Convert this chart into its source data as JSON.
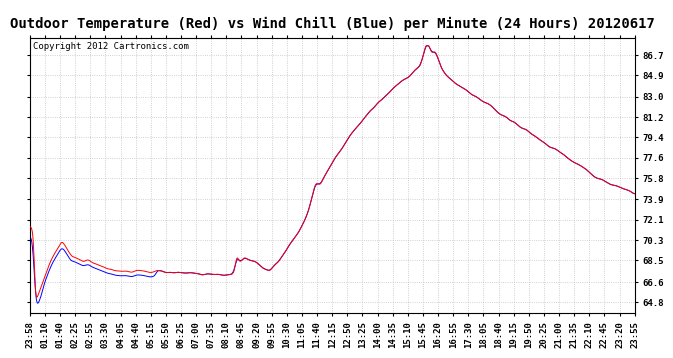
{
  "title": "Outdoor Temperature (Red) vs Wind Chill (Blue) per Minute (24 Hours) 20120617",
  "copyright_text": "Copyright 2012 Cartronics.com",
  "ylabel_right_values": [
    86.7,
    84.9,
    83.0,
    81.2,
    79.4,
    77.6,
    75.8,
    73.9,
    72.1,
    70.3,
    68.5,
    66.6,
    64.8
  ],
  "ylim": [
    63.8,
    88.2
  ],
  "x_tick_labels": [
    "23:58",
    "01:10",
    "01:40",
    "02:25",
    "02:55",
    "03:30",
    "04:05",
    "04:40",
    "05:15",
    "05:50",
    "06:25",
    "07:00",
    "07:35",
    "08:10",
    "08:45",
    "09:20",
    "09:55",
    "10:30",
    "11:05",
    "11:40",
    "12:15",
    "12:50",
    "13:25",
    "14:00",
    "14:35",
    "15:10",
    "15:45",
    "16:20",
    "16:55",
    "17:30",
    "18:05",
    "18:40",
    "19:15",
    "19:50",
    "20:25",
    "21:00",
    "21:35",
    "22:10",
    "22:45",
    "23:20",
    "23:55"
  ],
  "bg_color": "#ffffff",
  "plot_bg_color": "#ffffff",
  "grid_color": "#bbbbbb",
  "line_color_temp": "#ff0000",
  "line_color_wind": "#0000ff",
  "title_fontsize": 10,
  "tick_fontsize": 6.5,
  "copyright_fontsize": 6.5
}
